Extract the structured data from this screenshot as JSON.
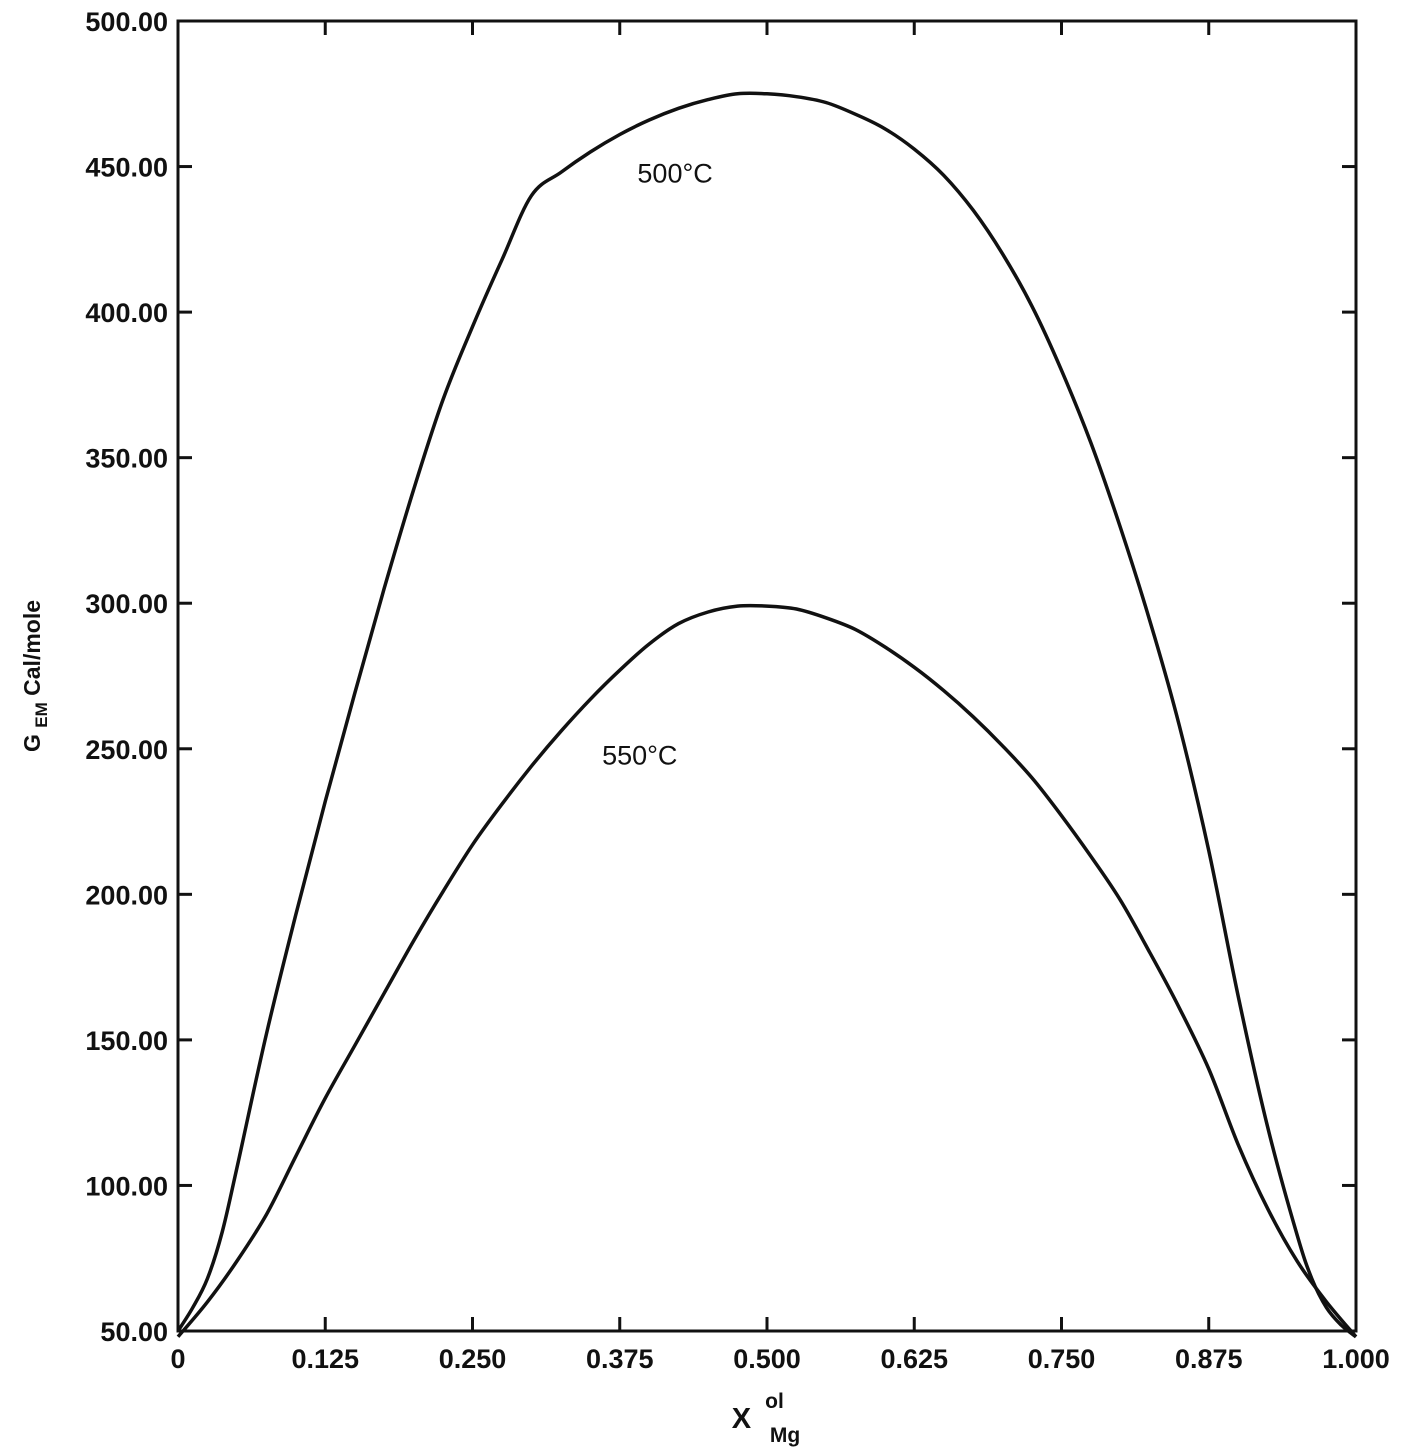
{
  "chart_data": {
    "type": "line",
    "xlabel": {
      "main": "X",
      "sup": "ol",
      "sub": "Mg"
    },
    "ylabel": {
      "main": "G",
      "sub": "EM",
      "rest": " Cal/mole"
    },
    "xlim": [
      0,
      1
    ],
    "ylim": [
      50,
      500
    ],
    "x_ticks": [
      0,
      0.125,
      0.25,
      0.375,
      0.5,
      0.625,
      0.75,
      0.875,
      1.0
    ],
    "x_tick_labels": [
      "0",
      "0.125",
      "0.250",
      "0.375",
      "0.500",
      "0.625",
      "0.750",
      "0.875",
      "1.000"
    ],
    "y_ticks": [
      50,
      100,
      150,
      200,
      250,
      300,
      350,
      400,
      450,
      500
    ],
    "y_tick_labels": [
      "50.00",
      "100.00",
      "150.00",
      "200.00",
      "250.00",
      "300.00",
      "350.00",
      "400.00",
      "450.00",
      "500.00"
    ],
    "grid": false,
    "series": [
      {
        "name": "500°C",
        "x": [
          0,
          0.0125,
          0.025,
          0.0375,
          0.05,
          0.075,
          0.1,
          0.125,
          0.15,
          0.175,
          0.2,
          0.225,
          0.25,
          0.275,
          0.3,
          0.325,
          0.35,
          0.375,
          0.4,
          0.425,
          0.45,
          0.475,
          0.5,
          0.525,
          0.55,
          0.575,
          0.6,
          0.625,
          0.65,
          0.675,
          0.7,
          0.725,
          0.75,
          0.775,
          0.8,
          0.825,
          0.85,
          0.875,
          0.9,
          0.925,
          0.95,
          0.9625,
          0.975,
          0.9875,
          1.0
        ],
        "y": [
          50,
          58,
          68,
          84,
          106,
          152,
          193,
          232,
          269,
          305,
          339,
          370,
          395,
          418,
          440,
          448,
          455,
          461,
          466,
          470,
          473,
          475,
          475,
          474,
          472,
          468,
          463,
          456,
          447,
          435,
          420,
          402,
          380,
          355,
          326,
          294,
          258,
          215,
          165,
          120,
          83,
          68,
          58,
          52,
          48
        ],
        "label_x": 0.39,
        "label_y": 448
      },
      {
        "name": "550°C",
        "x": [
          0,
          0.025,
          0.05,
          0.075,
          0.1,
          0.125,
          0.15,
          0.175,
          0.2,
          0.225,
          0.25,
          0.275,
          0.3,
          0.325,
          0.35,
          0.375,
          0.4,
          0.425,
          0.45,
          0.475,
          0.5,
          0.525,
          0.55,
          0.575,
          0.6,
          0.625,
          0.65,
          0.675,
          0.7,
          0.725,
          0.75,
          0.775,
          0.8,
          0.825,
          0.85,
          0.875,
          0.9,
          0.925,
          0.95,
          0.975,
          1.0
        ],
        "y": [
          48,
          60,
          74,
          90,
          110,
          130,
          148,
          166,
          184,
          201,
          217,
          231,
          244,
          256,
          267,
          277,
          286,
          293,
          297,
          299,
          299,
          298,
          295,
          291,
          285,
          278,
          270,
          261,
          251,
          240,
          227,
          213,
          198,
          180,
          161,
          140,
          114,
          92,
          74,
          60,
          48
        ],
        "label_x": 0.36,
        "label_y": 248
      }
    ]
  }
}
